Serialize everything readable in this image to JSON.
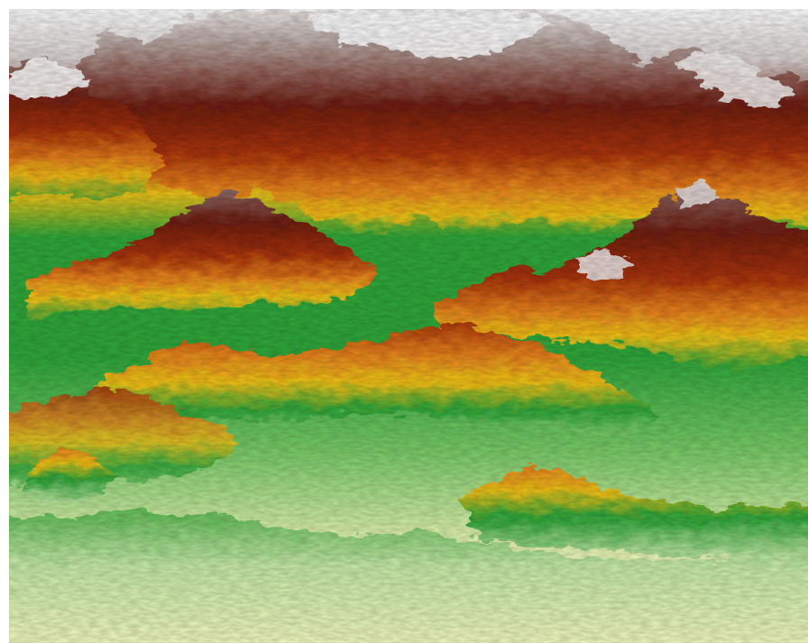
{
  "scene": {
    "type": "3d-terrain-elevation-render",
    "color_ramp": {
      "name": "elevation",
      "stops": [
        {
          "level": "lowest",
          "color": "#f7fcc4"
        },
        {
          "level": "low",
          "color": "#c8ecaa"
        },
        {
          "level": "low-mid",
          "color": "#7cce6a"
        },
        {
          "level": "mid",
          "color": "#2fa83a"
        },
        {
          "level": "mid-high",
          "color": "#f2c418"
        },
        {
          "level": "high",
          "color": "#e8821c"
        },
        {
          "level": "higher",
          "color": "#a8320a"
        },
        {
          "level": "very-high",
          "color": "#6e1e12"
        },
        {
          "level": "peak",
          "color": "#8f6f6a"
        },
        {
          "level": "summit",
          "color": "#ffffff"
        }
      ]
    },
    "background_color": "#ffffff"
  }
}
